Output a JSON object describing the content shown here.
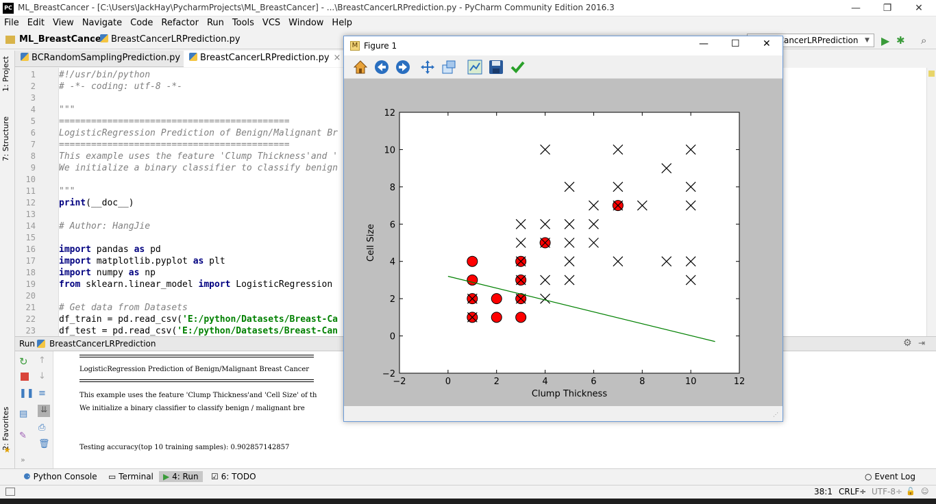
{
  "window": {
    "title": "ML_BreastCancer - [C:\\Users\\JackHay\\PycharmProjects\\ML_BreastCancer] - ...\\BreastCancerLRPrediction.py - PyCharm Community Edition 2016.3",
    "app_icon_text": "PC"
  },
  "menu": [
    "File",
    "Edit",
    "View",
    "Navigate",
    "Code",
    "Refactor",
    "Run",
    "Tools",
    "VCS",
    "Window",
    "Help"
  ],
  "breadcrumb": {
    "project": "ML_BreastCancer",
    "file": "BreastCancerLRPrediction.py"
  },
  "run_config": "BreastCancerLRPrediction",
  "tabs": [
    {
      "label": "BCRandomSamplingPrediction.py"
    },
    {
      "label": "BreastCancerLRPrediction.py"
    }
  ],
  "left_tools": {
    "project": "1: Project",
    "structure": "7: Structure",
    "favorites": "2: Favorites"
  },
  "code_lines": [
    {
      "n": "1",
      "segs": [
        [
          "cmt",
          "#!/usr/bin/python"
        ]
      ]
    },
    {
      "n": "2",
      "segs": [
        [
          "cmt",
          "# -*- coding: utf-8 -*-"
        ]
      ]
    },
    {
      "n": "3",
      "segs": []
    },
    {
      "n": "4",
      "segs": [
        [
          "cmt",
          "\"\"\""
        ]
      ]
    },
    {
      "n": "5",
      "segs": [
        [
          "cmt",
          "==========================================="
        ]
      ]
    },
    {
      "n": "6",
      "segs": [
        [
          "cmt",
          "LogisticRegression Prediction of Benign/Malignant Br"
        ]
      ]
    },
    {
      "n": "7",
      "segs": [
        [
          "cmt",
          "==========================================="
        ]
      ]
    },
    {
      "n": "8",
      "segs": [
        [
          "cmt",
          "This example uses the feature 'Clump Thickness'and '"
        ]
      ]
    },
    {
      "n": "9",
      "segs": [
        [
          "cmt",
          "We initialize a binary classifier to classify benign"
        ]
      ]
    },
    {
      "n": "10",
      "segs": []
    },
    {
      "n": "11",
      "segs": [
        [
          "cmt",
          "\"\"\""
        ]
      ]
    },
    {
      "n": "12",
      "segs": [
        [
          "kw",
          "print"
        ],
        [
          "",
          "(__doc__)"
        ]
      ]
    },
    {
      "n": "13",
      "segs": []
    },
    {
      "n": "14",
      "segs": [
        [
          "cmt",
          "# Author: HangJie"
        ]
      ]
    },
    {
      "n": "15",
      "segs": []
    },
    {
      "n": "16",
      "segs": [
        [
          "kw",
          "import"
        ],
        [
          "",
          " pandas "
        ],
        [
          "kw",
          "as"
        ],
        [
          "",
          " pd"
        ]
      ]
    },
    {
      "n": "17",
      "segs": [
        [
          "kw",
          "import"
        ],
        [
          "",
          " matplotlib.pyplot "
        ],
        [
          "kw",
          "as"
        ],
        [
          "",
          " plt"
        ]
      ]
    },
    {
      "n": "18",
      "segs": [
        [
          "kw",
          "import"
        ],
        [
          "",
          " numpy "
        ],
        [
          "kw",
          "as"
        ],
        [
          "",
          " np"
        ]
      ]
    },
    {
      "n": "19",
      "segs": [
        [
          "kw",
          "from"
        ],
        [
          "",
          " sklearn.linear_model "
        ],
        [
          "kw",
          "import"
        ],
        [
          "",
          " LogisticRegression"
        ]
      ]
    },
    {
      "n": "20",
      "segs": []
    },
    {
      "n": "21",
      "segs": [
        [
          "cmt",
          "# Get data from Datasets"
        ]
      ]
    },
    {
      "n": "22",
      "segs": [
        [
          "",
          "df_train = pd.read_csv("
        ],
        [
          "str",
          "'E:/python/Datasets/Breast-Ca"
        ]
      ]
    },
    {
      "n": "23",
      "segs": [
        [
          "",
          "df_test = pd.read_csv("
        ],
        [
          "str",
          "'E:/python/Datasets/Breast-Can"
        ]
      ]
    }
  ],
  "run_panel": {
    "header": "Run",
    "config": "BreastCancerLRPrediction",
    "output": {
      "title": "LogisticRegression Prediction of Benign/Malignant Breast Cancer",
      "line1": "This example uses the feature 'Clump Thickness'and 'Cell Size' of th",
      "line2": "We initialize a binary classifier to classify benign / malignant bre",
      "accuracy": "Testing accuracy(top 10 training samples): 0.902857142857"
    }
  },
  "bottom_tabs": [
    {
      "label": "Python Console"
    },
    {
      "label": "Terminal"
    },
    {
      "label": "4: Run"
    },
    {
      "label": "6: TODO"
    }
  ],
  "event_log": "Event Log",
  "status": {
    "position": "38:1",
    "line_sep": "CRLF÷",
    "encoding": "UTF-8÷"
  },
  "figure": {
    "title": "Figure 1"
  },
  "chart_data": {
    "type": "scatter",
    "xlabel": "Clump Thickness",
    "ylabel": "Cell Size",
    "xlim": [
      -2,
      12
    ],
    "ylim": [
      -2,
      12
    ],
    "xticks": [
      -2,
      0,
      2,
      4,
      6,
      8,
      10,
      12
    ],
    "yticks": [
      -2,
      0,
      2,
      4,
      6,
      8,
      10,
      12
    ],
    "colors": {
      "benign": "#ff0000",
      "malignant": "#000000",
      "line": "#008000"
    },
    "series": [
      {
        "marker": "o",
        "color": "#ff0000",
        "points": [
          [
            1,
            4
          ],
          [
            1,
            3
          ],
          [
            1,
            2
          ],
          [
            1,
            1
          ],
          [
            2,
            2
          ],
          [
            2,
            1
          ],
          [
            3,
            4
          ],
          [
            3,
            3
          ],
          [
            3,
            2
          ],
          [
            3,
            1
          ],
          [
            4,
            5
          ],
          [
            7,
            7
          ]
        ]
      },
      {
        "marker": "x",
        "color": "#000000",
        "points": [
          [
            1,
            2
          ],
          [
            1,
            1
          ],
          [
            3,
            4
          ],
          [
            3,
            3
          ],
          [
            3,
            2
          ],
          [
            3,
            6
          ],
          [
            3,
            5
          ],
          [
            4,
            10
          ],
          [
            4,
            6
          ],
          [
            4,
            5
          ],
          [
            4,
            3
          ],
          [
            4,
            2
          ],
          [
            5,
            8
          ],
          [
            5,
            6
          ],
          [
            5,
            5
          ],
          [
            5,
            4
          ],
          [
            5,
            3
          ],
          [
            6,
            7
          ],
          [
            6,
            6
          ],
          [
            6,
            5
          ],
          [
            7,
            10
          ],
          [
            7,
            8
          ],
          [
            7,
            7
          ],
          [
            7,
            4
          ],
          [
            8,
            7
          ],
          [
            9,
            9
          ],
          [
            9,
            4
          ],
          [
            10,
            10
          ],
          [
            10,
            8
          ],
          [
            10,
            7
          ],
          [
            10,
            4
          ],
          [
            10,
            3
          ]
        ]
      }
    ],
    "line": {
      "x": [
        0,
        11
      ],
      "y": [
        3.2,
        -0.3
      ]
    }
  }
}
